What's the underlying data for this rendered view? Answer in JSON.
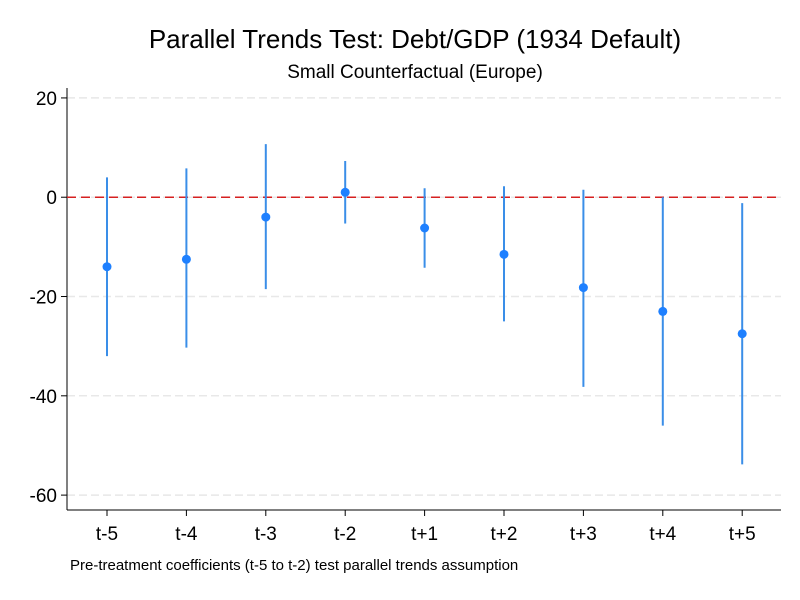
{
  "chart_data": {
    "type": "scatter",
    "title": "Parallel Trends Test: Debt/GDP (1934 Default)",
    "subtitle": "Small Counterfactual (Europe)",
    "note": "Pre-treatment coefficients (t-5 to t-2) test parallel trends assumption",
    "xlabel": "",
    "ylabel": "",
    "categories": [
      "t-5",
      "t-4",
      "t-3",
      "t-2",
      "t+1",
      "t+2",
      "t+3",
      "t+4",
      "t+5"
    ],
    "values": [
      -14,
      -12.5,
      -4,
      1,
      -6.2,
      -11.5,
      -18.2,
      -23,
      -27.5
    ],
    "ci_low": [
      -32,
      -30.3,
      -18.5,
      -5.3,
      -14.2,
      -25,
      -38.2,
      -46,
      -53.8
    ],
    "ci_high": [
      4,
      5.8,
      10.7,
      7.3,
      1.8,
      2.2,
      1.5,
      0,
      -1.2
    ],
    "ylim": [
      -63,
      22
    ],
    "yticks": [
      20,
      0,
      -20,
      -40,
      -60
    ],
    "reference_line": 0,
    "grid": true,
    "colors": {
      "point": "#1e80ff",
      "ci": "#3a8ee8",
      "reference": "#d62020",
      "grid": "#e8e8e8",
      "axis": "#000000"
    }
  }
}
